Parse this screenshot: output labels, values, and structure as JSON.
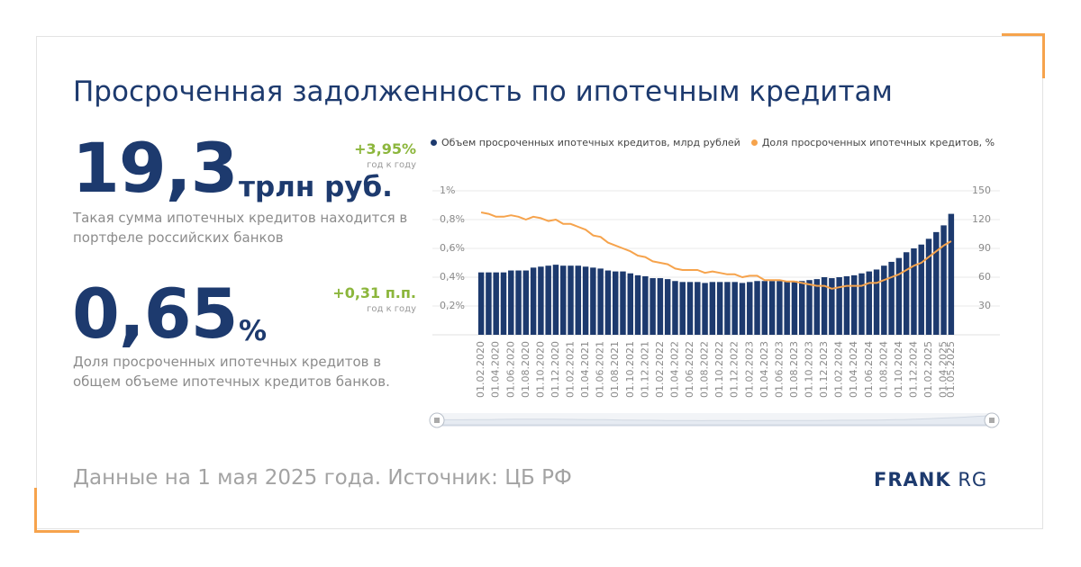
{
  "page": {
    "title": "Просроченная задолженность по ипотечным кредитам",
    "footer_note": "Данные на 1 мая 2025 года. Источник: ЦБ РФ",
    "brand_bold": "FRANK",
    "brand_light": "RG",
    "accent_color": "#f6a34c",
    "navy_color": "#1d3a6e",
    "green_color": "#8cb63c"
  },
  "kpi1": {
    "value": "19,3",
    "unit": "трлн руб.",
    "delta": "+3,95%",
    "delta_sub": "год к году",
    "description": "Такая сумма ипотечных кредитов находится в портфеле российских банков"
  },
  "kpi2": {
    "value": "0,65",
    "unit": "%",
    "delta": "+0,31 п.п.",
    "delta_sub": "год к году",
    "description": "Доля просроченных ипотечных кредитов в общем объеме ипотечных кредитов банков."
  },
  "legend": {
    "bar_label": "Объем просроченных ипотечных кредитов, млрд рублей",
    "line_label": "Доля просроченных ипотечных кредитов, %"
  },
  "chart_data": {
    "type": "bar+line",
    "x": [
      "01.02.2020",
      "01.03.2020",
      "01.04.2020",
      "01.05.2020",
      "01.06.2020",
      "01.07.2020",
      "01.08.2020",
      "01.09.2020",
      "01.10.2020",
      "01.11.2020",
      "01.12.2020",
      "01.01.2021",
      "01.02.2021",
      "01.03.2021",
      "01.04.2021",
      "01.05.2021",
      "01.06.2021",
      "01.07.2021",
      "01.08.2021",
      "01.09.2021",
      "01.10.2021",
      "01.11.2021",
      "01.12.2021",
      "01.01.2022",
      "01.02.2022",
      "01.03.2022",
      "01.04.2022",
      "01.05.2022",
      "01.06.2022",
      "01.07.2022",
      "01.08.2022",
      "01.09.2022",
      "01.10.2022",
      "01.11.2022",
      "01.12.2022",
      "01.01.2023",
      "01.02.2023",
      "01.03.2023",
      "01.04.2023",
      "01.05.2023",
      "01.06.2023",
      "01.07.2023",
      "01.08.2023",
      "01.09.2023",
      "01.10.2023",
      "01.11.2023",
      "01.12.2023",
      "01.01.2024",
      "01.02.2024",
      "01.03.2024",
      "01.04.2024",
      "01.05.2024",
      "01.06.2024",
      "01.07.2024",
      "01.08.2024",
      "01.09.2024",
      "01.10.2024",
      "01.11.2024",
      "01.12.2024",
      "01.01.2025",
      "01.02.2025",
      "01.03.2025",
      "01.04.2025",
      "01.05.2025"
    ],
    "x_tick_labels": [
      "01.02.2020",
      "01.04.2020",
      "01.06.2020",
      "01.08.2020",
      "01.10.2020",
      "01.12.2020",
      "01.02.2021",
      "01.04.2021",
      "01.06.2021",
      "01.08.2021",
      "01.10.2021",
      "01.12.2021",
      "01.02.2022",
      "01.04.2022",
      "01.06.2022",
      "01.08.2022",
      "01.10.2022",
      "01.12.2022",
      "01.02.2023",
      "01.04.2023",
      "01.06.2023",
      "01.08.2023",
      "01.10.2023",
      "01.12.2023",
      "01.02.2024",
      "01.04.2024",
      "01.06.2024",
      "01.08.2024",
      "01.10.2024",
      "01.12.2024",
      "01.02.2025",
      "01.04.2025",
      "01.05.2025"
    ],
    "series": [
      {
        "name": "Объем просроченных ипотечных кредитов, млрд рублей",
        "type": "bar",
        "axis": "right",
        "color": "#1d3a6e",
        "values": [
          65,
          65,
          65,
          65,
          67,
          67,
          67,
          70,
          71,
          72,
          73,
          72,
          72,
          72,
          71,
          70,
          69,
          67,
          66,
          66,
          64,
          62,
          61,
          59,
          59,
          58,
          56,
          55,
          55,
          55,
          54,
          55,
          55,
          55,
          55,
          54,
          55,
          56,
          56,
          56,
          56,
          56,
          56,
          56,
          57,
          58,
          60,
          59,
          60,
          61,
          62,
          64,
          66,
          68,
          72,
          76,
          80,
          86,
          90,
          94,
          100,
          107,
          114,
          126
        ]
      },
      {
        "name": "Доля просроченных ипотечных кредитов, %",
        "type": "line",
        "axis": "left",
        "color": "#f6a34c",
        "values": [
          0.85,
          0.84,
          0.82,
          0.82,
          0.83,
          0.82,
          0.8,
          0.82,
          0.81,
          0.79,
          0.8,
          0.77,
          0.77,
          0.75,
          0.73,
          0.69,
          0.68,
          0.64,
          0.62,
          0.6,
          0.58,
          0.55,
          0.54,
          0.51,
          0.5,
          0.49,
          0.46,
          0.45,
          0.45,
          0.45,
          0.43,
          0.44,
          0.43,
          0.42,
          0.42,
          0.4,
          0.41,
          0.41,
          0.38,
          0.38,
          0.38,
          0.37,
          0.37,
          0.36,
          0.35,
          0.34,
          0.34,
          0.32,
          0.33,
          0.34,
          0.34,
          0.34,
          0.36,
          0.36,
          0.38,
          0.4,
          0.42,
          0.45,
          0.48,
          0.5,
          0.54,
          0.58,
          0.62,
          0.65
        ]
      }
    ],
    "y_left": {
      "ticks": [
        0.2,
        0.4,
        0.6,
        0.8,
        1
      ],
      "tick_labels": [
        "0,2%",
        "0,4%",
        "0,6%",
        "0,8%",
        "1%"
      ],
      "range": [
        0,
        1
      ]
    },
    "y_right": {
      "ticks": [
        30,
        60,
        90,
        120,
        150
      ],
      "tick_labels": [
        "30",
        "60",
        "90",
        "120",
        "150"
      ],
      "range": [
        0,
        150
      ]
    },
    "grid": true,
    "legend_position": "top"
  }
}
